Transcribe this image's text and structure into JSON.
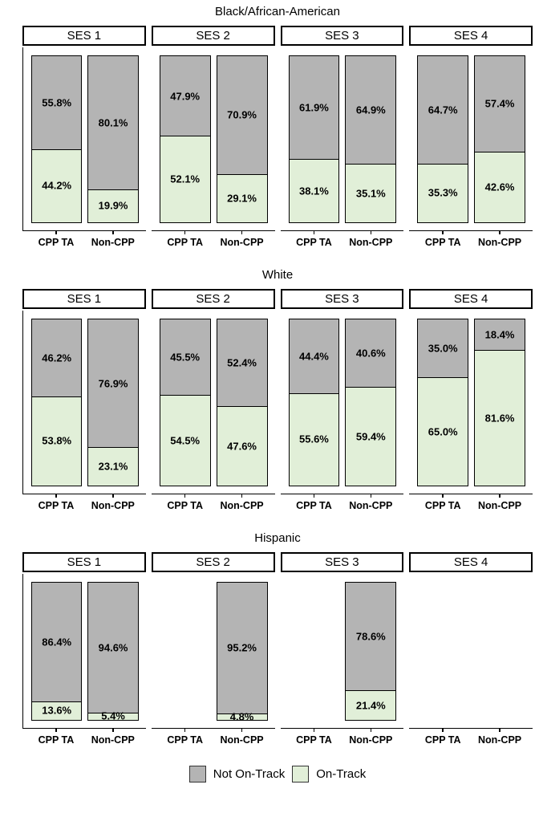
{
  "chart_data": {
    "type": "bar",
    "subtype": "100pct-stacked-faceted",
    "unit": "percent",
    "categories": [
      "CPP TA",
      "Non-CPP"
    ],
    "series_names": [
      "Not On-Track",
      "On-Track"
    ],
    "legend": {
      "position": "bottom",
      "items": [
        {
          "label": "Not On-Track",
          "color": "#b4b4b4"
        },
        {
          "label": "On-Track",
          "color": "#e1efd8"
        }
      ]
    },
    "facet_rows": [
      {
        "title": "Black/African-American",
        "panels": [
          {
            "label": "SES 1",
            "bars": [
              {
                "category": "CPP TA",
                "values": [
                  55.8,
                  44.2
                ],
                "labels": [
                  "55.8%",
                  "44.2%"
                ]
              },
              {
                "category": "Non-CPP",
                "values": [
                  80.1,
                  19.9
                ],
                "labels": [
                  "80.1%",
                  "19.9%"
                ]
              }
            ]
          },
          {
            "label": "SES 2",
            "bars": [
              {
                "category": "CPP TA",
                "values": [
                  47.9,
                  52.1
                ],
                "labels": [
                  "47.9%",
                  "52.1%"
                ]
              },
              {
                "category": "Non-CPP",
                "values": [
                  70.9,
                  29.1
                ],
                "labels": [
                  "70.9%",
                  "29.1%"
                ]
              }
            ]
          },
          {
            "label": "SES 3",
            "bars": [
              {
                "category": "CPP TA",
                "values": [
                  61.9,
                  38.1
                ],
                "labels": [
                  "61.9%",
                  "38.1%"
                ]
              },
              {
                "category": "Non-CPP",
                "values": [
                  64.9,
                  35.1
                ],
                "labels": [
                  "64.9%",
                  "35.1%"
                ]
              }
            ]
          },
          {
            "label": "SES 4",
            "bars": [
              {
                "category": "CPP TA",
                "values": [
                  64.7,
                  35.3
                ],
                "labels": [
                  "64.7%",
                  "35.3%"
                ]
              },
              {
                "category": "Non-CPP",
                "values": [
                  57.4,
                  42.6
                ],
                "labels": [
                  "57.4%",
                  "42.6%"
                ]
              }
            ]
          }
        ]
      },
      {
        "title": "White",
        "panels": [
          {
            "label": "SES 1",
            "bars": [
              {
                "category": "CPP TA",
                "values": [
                  46.2,
                  53.8
                ],
                "labels": [
                  "46.2%",
                  "53.8%"
                ]
              },
              {
                "category": "Non-CPP",
                "values": [
                  76.9,
                  23.1
                ],
                "labels": [
                  "76.9%",
                  "23.1%"
                ]
              }
            ]
          },
          {
            "label": "SES 2",
            "bars": [
              {
                "category": "CPP TA",
                "values": [
                  45.5,
                  54.5
                ],
                "labels": [
                  "45.5%",
                  "54.5%"
                ]
              },
              {
                "category": "Non-CPP",
                "values": [
                  52.4,
                  47.6
                ],
                "labels": [
                  "52.4%",
                  "47.6%"
                ]
              }
            ]
          },
          {
            "label": "SES 3",
            "bars": [
              {
                "category": "CPP TA",
                "values": [
                  44.4,
                  55.6
                ],
                "labels": [
                  "44.4%",
                  "55.6%"
                ]
              },
              {
                "category": "Non-CPP",
                "values": [
                  40.6,
                  59.4
                ],
                "labels": [
                  "40.6%",
                  "59.4%"
                ]
              }
            ]
          },
          {
            "label": "SES 4",
            "bars": [
              {
                "category": "CPP TA",
                "values": [
                  35.0,
                  65.0
                ],
                "labels": [
                  "35.0%",
                  "65.0%"
                ]
              },
              {
                "category": "Non-CPP",
                "values": [
                  18.4,
                  81.6
                ],
                "labels": [
                  "18.4%",
                  "81.6%"
                ]
              }
            ]
          }
        ]
      },
      {
        "title": "Hispanic",
        "panels": [
          {
            "label": "SES 1",
            "bars": [
              {
                "category": "CPP TA",
                "values": [
                  86.4,
                  13.6
                ],
                "labels": [
                  "86.4%",
                  "13.6%"
                ]
              },
              {
                "category": "Non-CPP",
                "values": [
                  94.6,
                  5.4
                ],
                "labels": [
                  "94.6%",
                  "5.4%"
                ]
              }
            ]
          },
          {
            "label": "SES 2",
            "bars": [
              {
                "category": "CPP TA",
                "values": null,
                "labels": null
              },
              {
                "category": "Non-CPP",
                "values": [
                  95.2,
                  4.8
                ],
                "labels": [
                  "95.2%",
                  "4.8%"
                ]
              }
            ]
          },
          {
            "label": "SES 3",
            "bars": [
              {
                "category": "CPP TA",
                "values": null,
                "labels": null
              },
              {
                "category": "Non-CPP",
                "values": [
                  78.6,
                  21.4
                ],
                "labels": [
                  "78.6%",
                  "21.4%"
                ]
              }
            ]
          },
          {
            "label": "SES 4",
            "bars": [
              {
                "category": "CPP TA",
                "values": null,
                "labels": null
              },
              {
                "category": "Non-CPP",
                "values": null,
                "labels": null
              }
            ]
          }
        ]
      }
    ]
  },
  "colors": {
    "bar_outline": "#000000",
    "axis_line": "#000000",
    "not_on_track_fill": "#b4b4b4",
    "on_track_fill": "#e1efd8"
  }
}
